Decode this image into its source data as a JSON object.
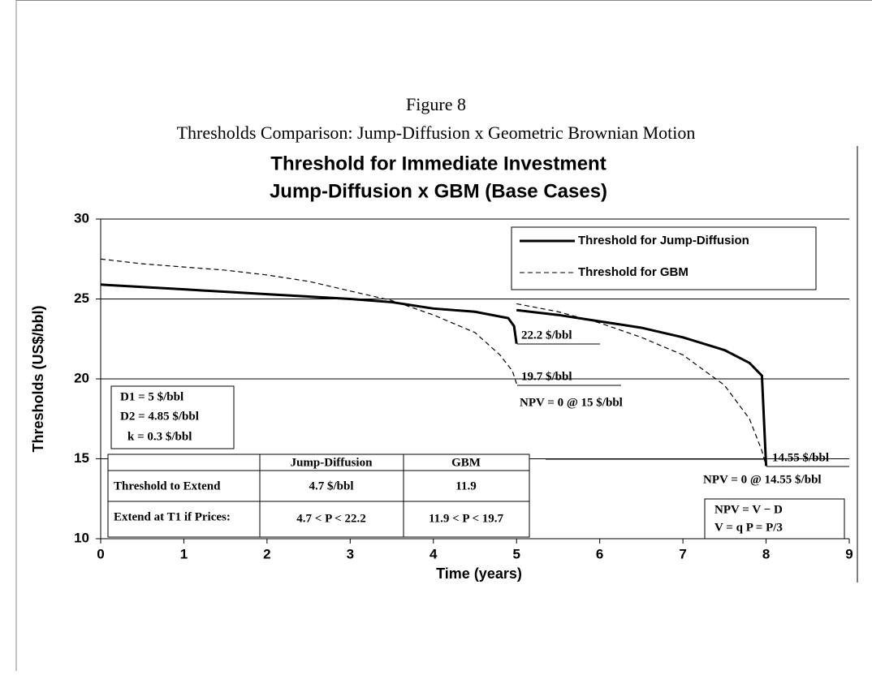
{
  "chart_data": {
    "type": "line",
    "caption": "Figure 8",
    "subcaption": "Thresholds Comparison: Jump-Diffusion x Geometric Brownian Motion",
    "title": "Threshold for Immediate Investment",
    "subtitle": "Jump-Diffusion x GBM  (Base Cases)",
    "x_label": "Time (years)",
    "y_label": "Thresholds (US$/bbl)",
    "xlim": [
      0,
      9
    ],
    "xticks": [
      0,
      1,
      2,
      3,
      4,
      5,
      6,
      7,
      8,
      9
    ],
    "ylim": [
      10,
      30
    ],
    "yticks": [
      10,
      15,
      20,
      25,
      30
    ],
    "grid": true,
    "legend": "upper right",
    "series": [
      {
        "name": "Threshold for Jump-Diffusion",
        "color": "#000000",
        "style": "solid",
        "x": [
          0,
          1,
          2,
          3,
          3.5,
          4,
          4.5,
          4.9,
          4.97,
          5,
          null,
          5,
          5.5,
          6,
          6.5,
          7,
          7.5,
          7.8,
          7.95,
          8
        ],
        "values": [
          25.9,
          25.6,
          25.3,
          25.0,
          24.8,
          24.4,
          24.2,
          23.8,
          23.3,
          22.2,
          null,
          24.3,
          24.0,
          23.6,
          23.2,
          22.6,
          21.8,
          21.0,
          20.2,
          14.55
        ]
      },
      {
        "name": "Threshold for GBM",
        "color": "#000000",
        "style": "dashed",
        "x": [
          0,
          0.5,
          1,
          1.5,
          2,
          2.5,
          3,
          3.5,
          4,
          4.5,
          4.8,
          4.95,
          5,
          null,
          5,
          5.5,
          6,
          6.5,
          7,
          7.5,
          7.8,
          7.95,
          8
        ],
        "values": [
          27.5,
          27.2,
          27.0,
          26.8,
          26.5,
          26.1,
          25.5,
          24.9,
          24.0,
          22.9,
          21.5,
          20.5,
          19.7,
          null,
          24.7,
          24.2,
          23.5,
          22.6,
          21.5,
          19.6,
          17.5,
          15.5,
          14.55
        ]
      }
    ],
    "annotations": [
      "22.2 $/bbl",
      "19.7 $/bbl",
      "NPV = 0 @ 15 $/bbl",
      "14.55 $/bbl",
      "NPV = 0 @ 14.55 $/bbl"
    ],
    "parameters": [
      "D1 = 5 $/bbl",
      "D2 = 4.85 $/bbl",
      "k = 0.3 $/bbl"
    ],
    "table": {
      "header": [
        "Jump-Diffusion",
        "GBM"
      ],
      "rows": [
        [
          "Threshold to Extend",
          "4.7 $/bbl",
          "11.9"
        ],
        [
          "Extend at T1 if Prices:",
          "4.7 < P < 22.2",
          "11.9 < P < 19.7"
        ]
      ]
    },
    "formula": [
      "NPV = V − D",
      "V = q P = P/3"
    ]
  }
}
